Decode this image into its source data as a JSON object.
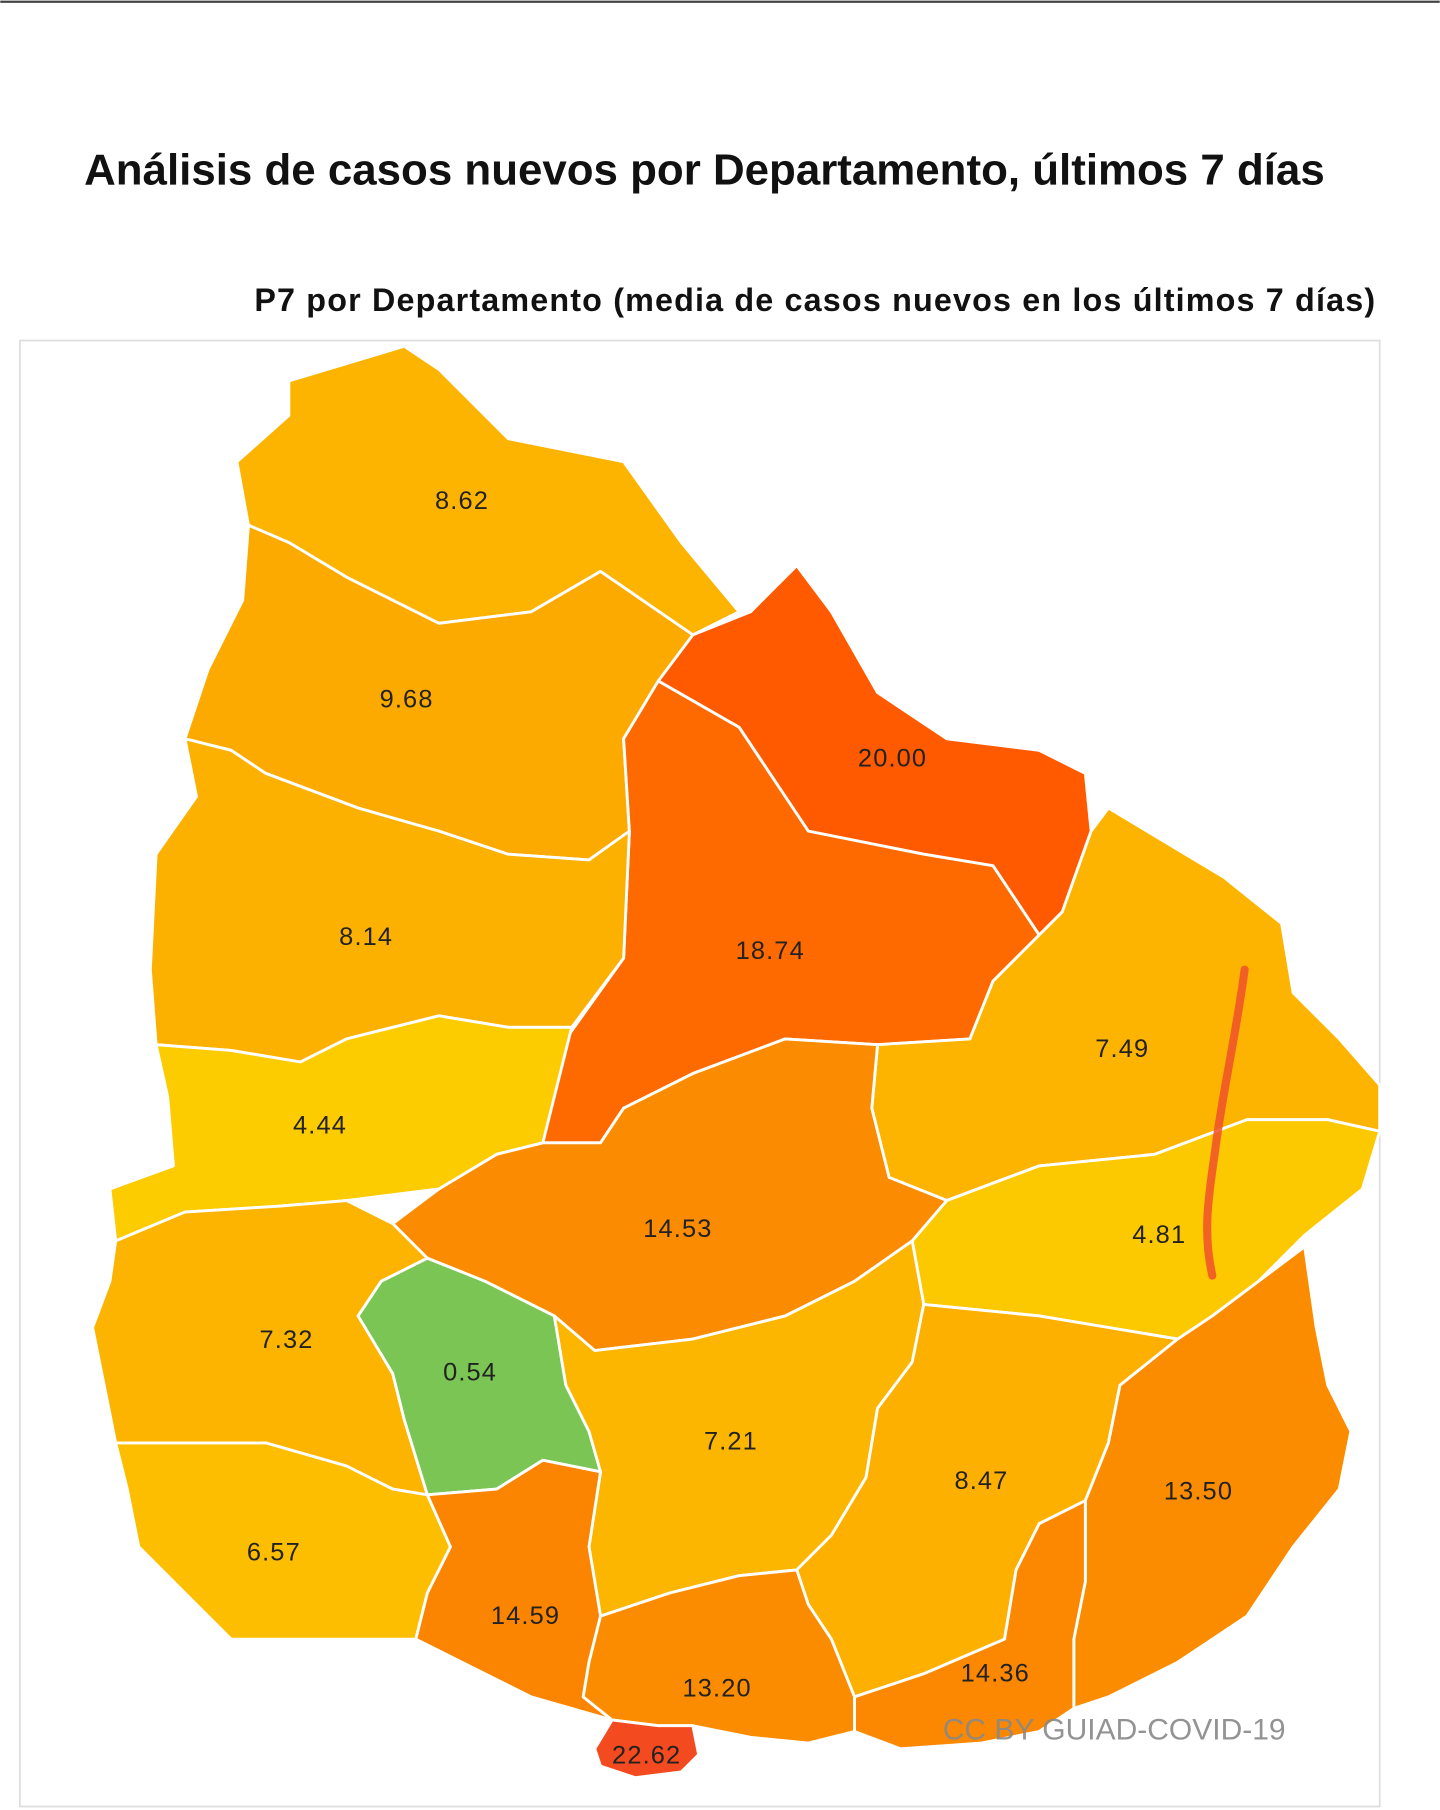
{
  "header": {
    "title": "Análisis de casos nuevos por Departamento, últimos 7 días"
  },
  "chart_data": {
    "type": "choropleth",
    "title": "P7 por Departamento (media de casos nuevos en los últimos 7 días)",
    "values": [
      8.62,
      9.68,
      20,
      18.74,
      8.14,
      4.44,
      7.49,
      14.53,
      4.81,
      7.32,
      0.54,
      7.21,
      8.47,
      13.5,
      14.36,
      6.57,
      14.59,
      13.2,
      22.62
    ],
    "value_labels": [
      "8.62",
      "9.68",
      "20.00",
      "18.74",
      "8.14",
      "4.44",
      "7.49",
      "14.53",
      "4.81",
      "7.32",
      "0.54",
      "7.21",
      "8.47",
      "13.50",
      "14.36",
      "6.57",
      "14.59",
      "13.20",
      "22.62"
    ],
    "colors": [
      "#fdb400",
      "#fcaa00",
      "#ff5a00",
      "#ff6a00",
      "#fcb000",
      "#fccb00",
      "#fdb400",
      "#fb8b00",
      "#fcc900",
      "#fcb400",
      "#7ac553",
      "#fdb600",
      "#fdb000",
      "#fb8c00",
      "#fb8800",
      "#fdbe00",
      "#fb8400",
      "#fb8c00",
      "#f44a1f"
    ],
    "attribution": "CC BY GUIAD-COVID-19"
  }
}
